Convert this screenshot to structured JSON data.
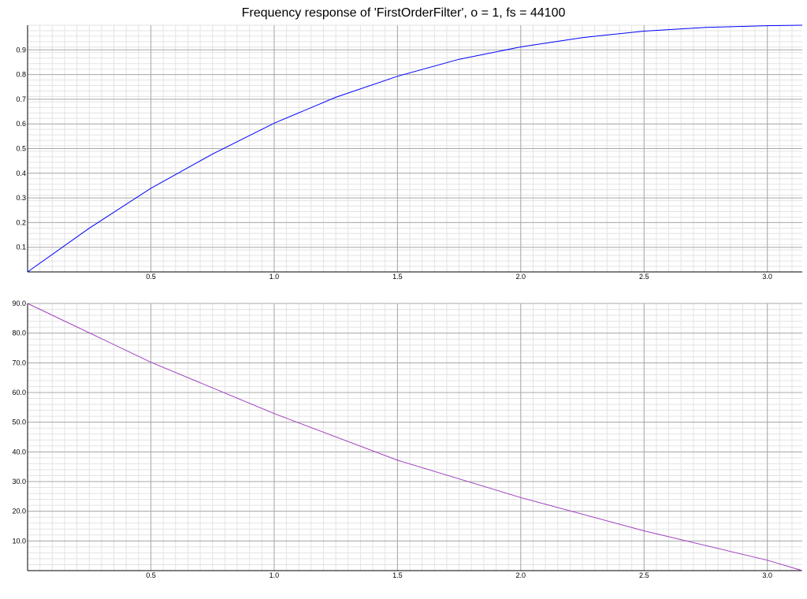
{
  "title": "Frequency response of 'FirstOrderFilter', o = 1, fs = 44100",
  "chart_data": [
    {
      "type": "line",
      "panel": "magnitude",
      "title": "Frequency response of 'FirstOrderFilter', o = 1, fs = 44100",
      "xlabel": "",
      "ylabel": "",
      "xlim": [
        0,
        3.1416
      ],
      "ylim": [
        0,
        1.0
      ],
      "x_ticks": [
        "0.5",
        "1.0",
        "1.5",
        "2.0",
        "2.5",
        "3.0"
      ],
      "y_ticks": [
        "0.1",
        "0.2",
        "0.3",
        "0.4",
        "0.5",
        "0.6",
        "0.7",
        "0.8",
        "0.9"
      ],
      "grid": true,
      "color": "#0000ff",
      "series": [
        {
          "x": [
            0,
            0.25,
            0.5,
            0.75,
            1.0,
            1.25,
            1.5,
            1.75,
            2.0,
            2.25,
            2.5,
            2.75,
            3.0,
            3.1416
          ],
          "values": [
            0.0,
            0.177,
            0.339,
            0.478,
            0.603,
            0.708,
            0.793,
            0.862,
            0.912,
            0.95,
            0.976,
            0.991,
            0.998,
            1.0
          ]
        }
      ]
    },
    {
      "type": "line",
      "panel": "phase",
      "xlabel": "",
      "ylabel": "",
      "xlim": [
        0,
        3.1416
      ],
      "ylim": [
        0,
        90
      ],
      "x_ticks": [
        "0.5",
        "1.0",
        "1.5",
        "2.0",
        "2.5",
        "3.0"
      ],
      "y_ticks": [
        "10.0",
        "20.0",
        "30.0",
        "40.0",
        "50.0",
        "60.0",
        "70.0",
        "80.0",
        "90.0"
      ],
      "grid": true,
      "color": "#a040c0",
      "series": [
        {
          "x": [
            0,
            0.5,
            1.0,
            1.5,
            2.0,
            2.5,
            3.0,
            3.1416
          ],
          "values": [
            90.0,
            70.2,
            52.9,
            37.2,
            24.6,
            13.4,
            3.5,
            0.0
          ]
        }
      ]
    }
  ]
}
